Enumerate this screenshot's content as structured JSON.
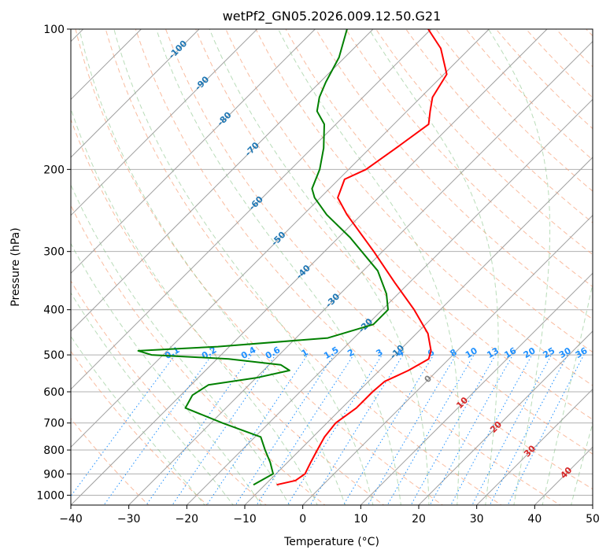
{
  "chart_data": {
    "type": "skew-t",
    "title": "wetPf2_GN05.2026.009.12.50.G21",
    "xlabel": "Temperature (°C)",
    "ylabel": "Pressure (hPa)",
    "xlim": [
      -40,
      50
    ],
    "ylim": [
      1050,
      100
    ],
    "yscale": "log",
    "grid": true,
    "x_ticks": [
      "−40",
      "−30",
      "−20",
      "−10",
      "0",
      "10",
      "20",
      "30",
      "40",
      "50"
    ],
    "y_ticks": [
      "100",
      "200",
      "300",
      "400",
      "500",
      "600",
      "700",
      "800",
      "900",
      "1000"
    ],
    "isotherm_labels": [
      "-100",
      "-90",
      "-80",
      "-70",
      "-60",
      "-50",
      "-40",
      "-30",
      "-20",
      "-10",
      "0",
      "10",
      "20",
      "30",
      "40"
    ],
    "mixing_ratio_labels": [
      "0.1",
      "0.2",
      "0.4",
      "0.6",
      "1",
      "1.5",
      "2",
      "3",
      "4",
      "6",
      "8",
      "10",
      "13",
      "16",
      "20",
      "25",
      "30",
      "36"
    ],
    "series": [
      {
        "name": "",
        "color": "#ff0000",
        "points": [
          [
            950,
            -8.0
          ],
          [
            930,
            -5.5
          ],
          [
            900,
            -5.0
          ],
          [
            850,
            -6.0
          ],
          [
            800,
            -7.0
          ],
          [
            750,
            -8.0
          ],
          [
            700,
            -8.5
          ],
          [
            650,
            -7.5
          ],
          [
            600,
            -7.5
          ],
          [
            570,
            -7.2
          ],
          [
            540,
            -5.0
          ],
          [
            510,
            -3.5
          ],
          [
            490,
            -4.5
          ],
          [
            450,
            -8.0
          ],
          [
            400,
            -14.5
          ],
          [
            350,
            -22.5
          ],
          [
            300,
            -31.5
          ],
          [
            250,
            -42.5
          ],
          [
            230,
            -47.0
          ],
          [
            210,
            -49.0
          ],
          [
            200,
            -47.0
          ],
          [
            180,
            -45.5
          ],
          [
            160,
            -44.0
          ],
          [
            150,
            -46.0
          ],
          [
            140,
            -48.0
          ],
          [
            125,
            -49.5
          ],
          [
            110,
            -55.0
          ],
          [
            100,
            -60.5
          ]
        ]
      },
      {
        "name": "",
        "color": "#008000",
        "points": [
          [
            950,
            -12.0
          ],
          [
            900,
            -10.5
          ],
          [
            850,
            -13.0
          ],
          [
            800,
            -16.0
          ],
          [
            750,
            -19.0
          ],
          [
            700,
            -28.0
          ],
          [
            650,
            -37.0
          ],
          [
            610,
            -38.0
          ],
          [
            580,
            -37.0
          ],
          [
            560,
            -30.0
          ],
          [
            540,
            -25.5
          ],
          [
            525,
            -28.0
          ],
          [
            510,
            -38.0
          ],
          [
            500,
            -52.0
          ],
          [
            490,
            -55.0
          ],
          [
            480,
            -42.0
          ],
          [
            460,
            -24.5
          ],
          [
            430,
            -19.0
          ],
          [
            400,
            -19.0
          ],
          [
            370,
            -22.0
          ],
          [
            330,
            -27.5
          ],
          [
            280,
            -38.0
          ],
          [
            250,
            -46.0
          ],
          [
            230,
            -51.0
          ],
          [
            220,
            -53.0
          ],
          [
            200,
            -55.0
          ],
          [
            180,
            -58.0
          ],
          [
            160,
            -62.0
          ],
          [
            150,
            -65.5
          ],
          [
            140,
            -67.5
          ],
          [
            130,
            -69.0
          ],
          [
            115,
            -71.0
          ],
          [
            100,
            -74.5
          ]
        ]
      }
    ]
  }
}
